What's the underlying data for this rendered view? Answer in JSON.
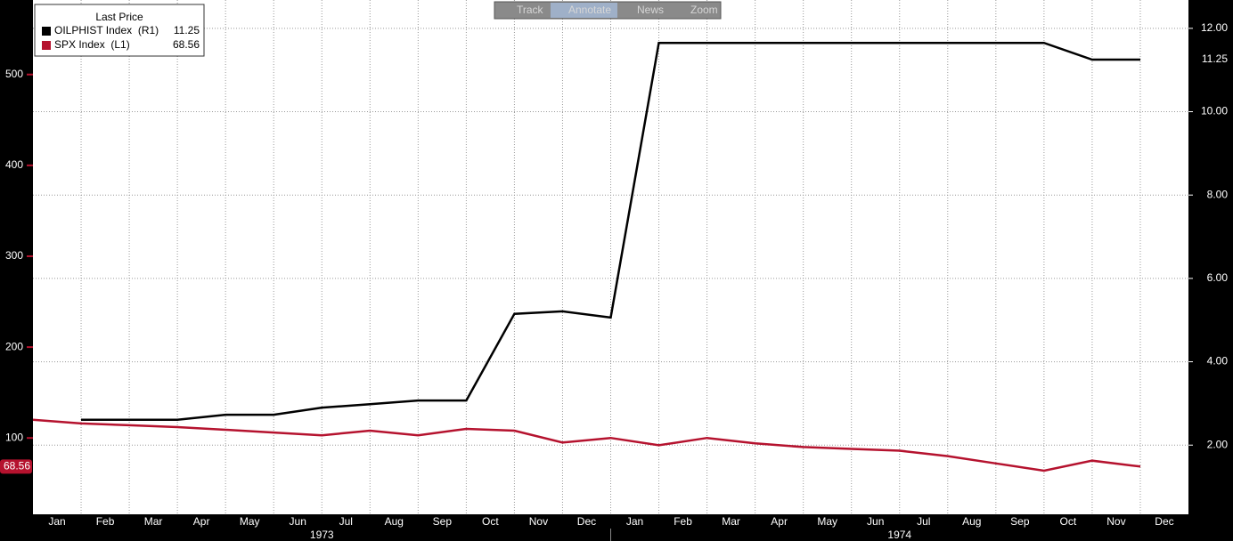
{
  "chart_data": {
    "type": "line",
    "toolbar": [
      "Track",
      "Annotate",
      "News",
      "Zoom"
    ],
    "legend_title": "Last Price",
    "categories": [
      "Jan",
      "Feb",
      "Mar",
      "Apr",
      "May",
      "Jun",
      "Jul",
      "Aug",
      "Sep",
      "Oct",
      "Nov",
      "Dec",
      "Jan",
      "Feb",
      "Mar",
      "Apr",
      "May",
      "Jun",
      "Jul",
      "Aug",
      "Sep",
      "Oct",
      "Nov",
      "Dec"
    ],
    "x_groups": [
      "1973",
      "1974"
    ],
    "series": [
      {
        "name": "OILPHIST Index  (R1)",
        "color": "#000000",
        "axis": "y2",
        "values": [
          null,
          2.61,
          2.61,
          2.61,
          2.73,
          2.73,
          2.9,
          2.98,
          3.07,
          3.07,
          5.15,
          5.21,
          5.06,
          11.65,
          11.65,
          11.65,
          11.65,
          11.65,
          11.65,
          11.65,
          11.65,
          11.65,
          11.25,
          11.25
        ]
      },
      {
        "name": "SPX Index  (L1)",
        "color": "#b5122e",
        "values": [
          120,
          116,
          114,
          112,
          109,
          106,
          103,
          108,
          103,
          110,
          108,
          95,
          100,
          92,
          100,
          94,
          90,
          88,
          86,
          80,
          72,
          64,
          75,
          68.56
        ]
      }
    ],
    "ylim": [
      16,
      582
    ],
    "yticks": [
      100,
      200,
      300,
      400,
      500
    ],
    "y2lim": [
      0.34,
      12.68
    ],
    "y2ticks": [
      {
        "value": 2,
        "label": "2.00"
      },
      {
        "value": 4,
        "label": "4.00"
      },
      {
        "value": 6,
        "label": "6.00"
      },
      {
        "value": 8,
        "label": "8.00"
      },
      {
        "value": 10,
        "label": "10.00"
      },
      {
        "value": 12,
        "label": "12.00"
      }
    ],
    "grid": true
  }
}
